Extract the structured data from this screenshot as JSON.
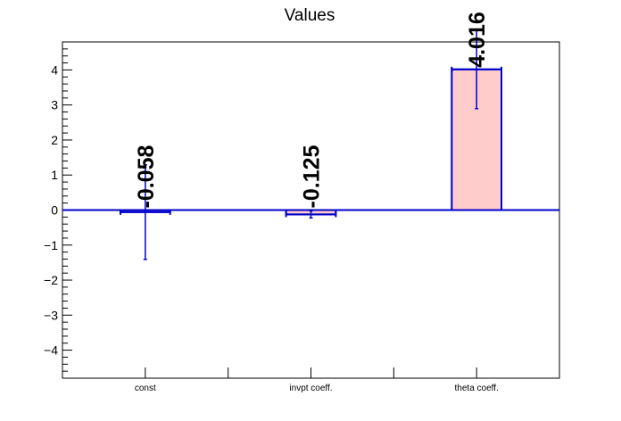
{
  "chart_data": {
    "type": "bar",
    "title": "Values",
    "xlabel": "",
    "ylabel": "",
    "categories": [
      "const",
      "invpt coeff.",
      "theta coeff."
    ],
    "values": [
      -0.058,
      -0.125,
      4.016
    ],
    "errors": [
      1.35,
      0.1,
      1.12
    ],
    "value_labels": [
      "-0.058",
      "-0.125",
      "4.016"
    ],
    "yticks": [
      -4,
      -3,
      -2,
      -1,
      0,
      1,
      2,
      3,
      4
    ],
    "ylim": [
      -4.8,
      4.8
    ],
    "grid": false,
    "legend": "none",
    "colors": {
      "bar_fill": "#ffcccc",
      "bar_stroke": "#0000cc",
      "error_bar": "#0000cc",
      "zero_line": "#0000cc",
      "frame": "#000000",
      "text": "#000000"
    }
  }
}
